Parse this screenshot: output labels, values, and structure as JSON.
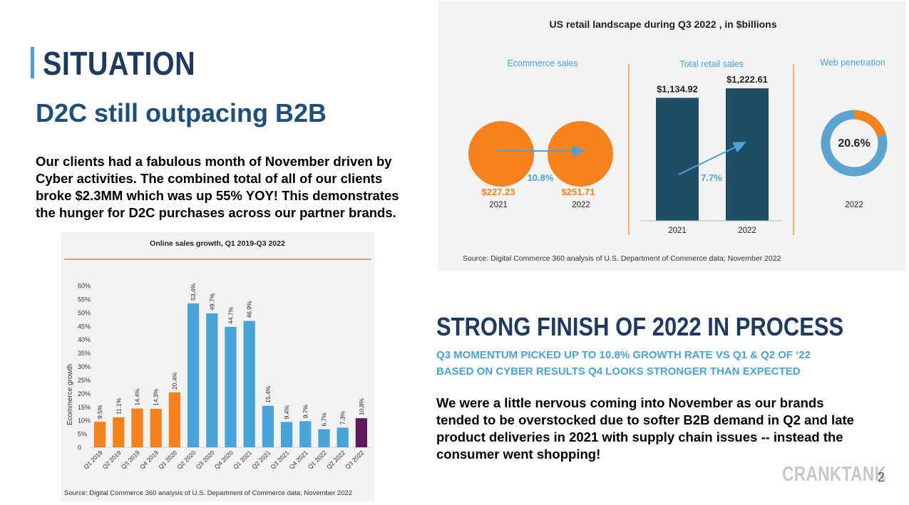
{
  "header": {
    "title": "SITUATION",
    "subtitle": "D2C still outpacing B2B",
    "intro": "Our clients had a fabulous month of November driven by\nCyber activities. The combined total of all of our clients\nbroke $2.3MM which was up 55% YOY!  This demonstrates\nthe hunger for D2C purchases across our partner brands."
  },
  "section2": {
    "heading": "STRONG FINISH OF 2022 IN PROCESS",
    "caption": "Q3 MOMENTUM PICKED UP TO 10.8% GROWTH RATE VS Q1 & Q2 OF ‘22\nBASED ON CYBER RESULTS Q4 LOOKS STRONGER THAN EXPECTED",
    "body": "We were a little nervous coming into November as our brands\ntended to be overstocked due to softer B2B demand in Q2 and late\nproduct deliveries in 2021 with supply chain issues -- instead the\nconsumer went shopping!"
  },
  "footer": {
    "logo": "CRANKTANK",
    "page_number": "2"
  },
  "colors": {
    "navy": "#1f3a5f",
    "orange": "#f5821f",
    "teal": "#1f4e66",
    "blue": "#4aa3d8",
    "purple": "#5b1a5b"
  },
  "retail": {
    "title": "US retail landscape during Q3 2022 , in $billions",
    "ecom_heading": "Ecommerce sales",
    "total_heading": "Total retail sales",
    "web_heading": "Web penetration",
    "ecom": {
      "values": [
        "$227.23",
        "$251.71"
      ],
      "years": [
        "2021",
        "2022"
      ],
      "growth": "10.8%"
    },
    "total": {
      "values": [
        1134.92,
        1222.61
      ],
      "value_labels": [
        "$1,134.92",
        "$1,222.61"
      ],
      "years": [
        "2021",
        "2022"
      ],
      "growth": "7.7%"
    },
    "web": {
      "fraction": 0.206,
      "label": "20.6%",
      "year": "2022"
    },
    "source": "Source: Digital Commerce 360 analysis of U.S. Department of Commerce data; November 2022"
  },
  "chart_data": {
    "type": "bar",
    "title": "Online sales growth, Q1 2019-Q3 2022",
    "ylabel": "Ecommerce growth",
    "xlabel": "",
    "ylim": [
      0,
      60
    ],
    "yticks": [
      "0",
      "5%",
      "10%",
      "15%",
      "20%",
      "25%",
      "30%",
      "35%",
      "40%",
      "45%",
      "50%",
      "55%",
      "60%"
    ],
    "categories": [
      "Q1 2019",
      "Q2 2019",
      "Q3 2019",
      "Q4 2019",
      "Q1 2020",
      "Q2 2020",
      "Q3 2020",
      "Q4 2020",
      "Q1 2021",
      "Q2 2021",
      "Q3 2021",
      "Q4 2021",
      "Q1 2022",
      "Q2 2022",
      "Q3 2022"
    ],
    "values": [
      9.5,
      11.1,
      14.4,
      14.3,
      20.4,
      53.4,
      49.7,
      44.7,
      46.9,
      15.4,
      9.4,
      9.7,
      6.7,
      7.3,
      10.8
    ],
    "labels": [
      "9.5%",
      "11.1%",
      "14.4%",
      "14.3%",
      "20.4%",
      "53.4%",
      "49.7%",
      "44.7%",
      "46.9%",
      "15.4%",
      "9.4%",
      "9.7%",
      "6.7%",
      "7.3%",
      "10.8%"
    ],
    "bar_colors": [
      "#f5821f",
      "#f5821f",
      "#f5821f",
      "#f5821f",
      "#f5821f",
      "#4aa3d8",
      "#4aa3d8",
      "#4aa3d8",
      "#4aa3d8",
      "#4aa3d8",
      "#4aa3d8",
      "#4aa3d8",
      "#4aa3d8",
      "#4aa3d8",
      "#5b1a5b"
    ],
    "source": "Source: Digital Commerce 360 analysis of U.S. Department of Commerce data; November 2022"
  }
}
